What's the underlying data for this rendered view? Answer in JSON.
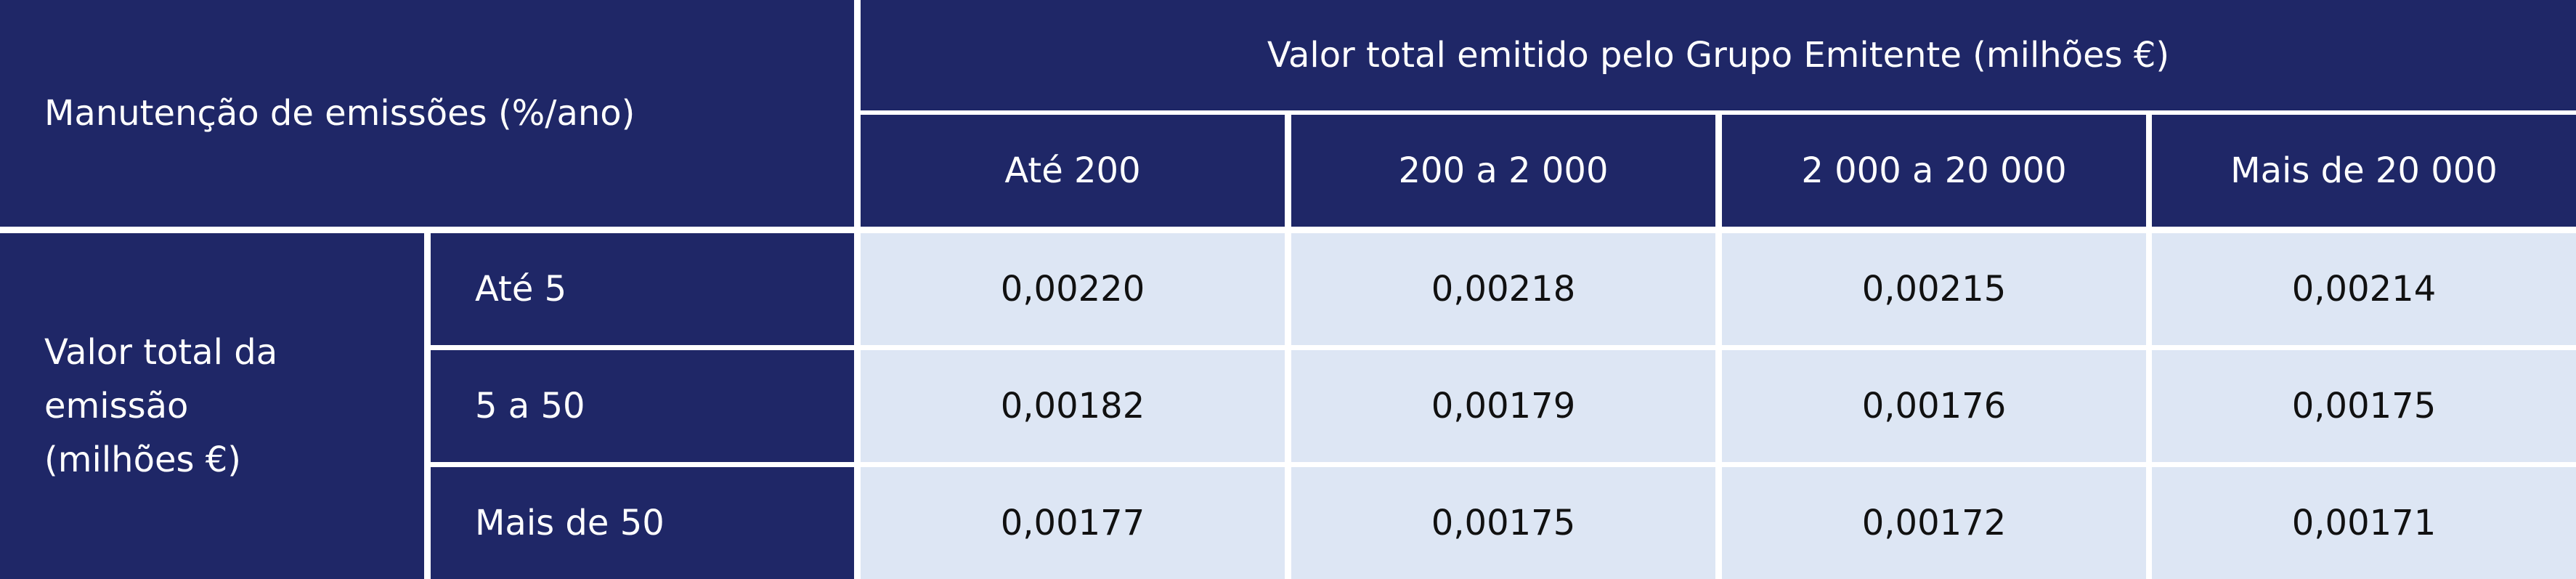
{
  "header": {
    "corner": "Manutenção de emissões (%/ano)",
    "group": "Valor total emitido pelo Grupo Emitente (milhões €)",
    "columns": [
      "Até 200",
      "200 a 2 000",
      "2 000 a 20 000",
      "Mais de 20 000"
    ]
  },
  "rows": {
    "label": "Valor total da emissão (milhões €)",
    "items": [
      {
        "label": "Até 5",
        "values": [
          "0,00220",
          "0,00218",
          "0,00215",
          "0,00214"
        ]
      },
      {
        "label": "5 a 50",
        "values": [
          "0,00182",
          "0,00179",
          "0,00176",
          "0,00175"
        ]
      },
      {
        "label": "Mais de 50",
        "values": [
          "0,00177",
          "0,00175",
          "0,00172",
          "0,00171"
        ]
      }
    ]
  }
}
